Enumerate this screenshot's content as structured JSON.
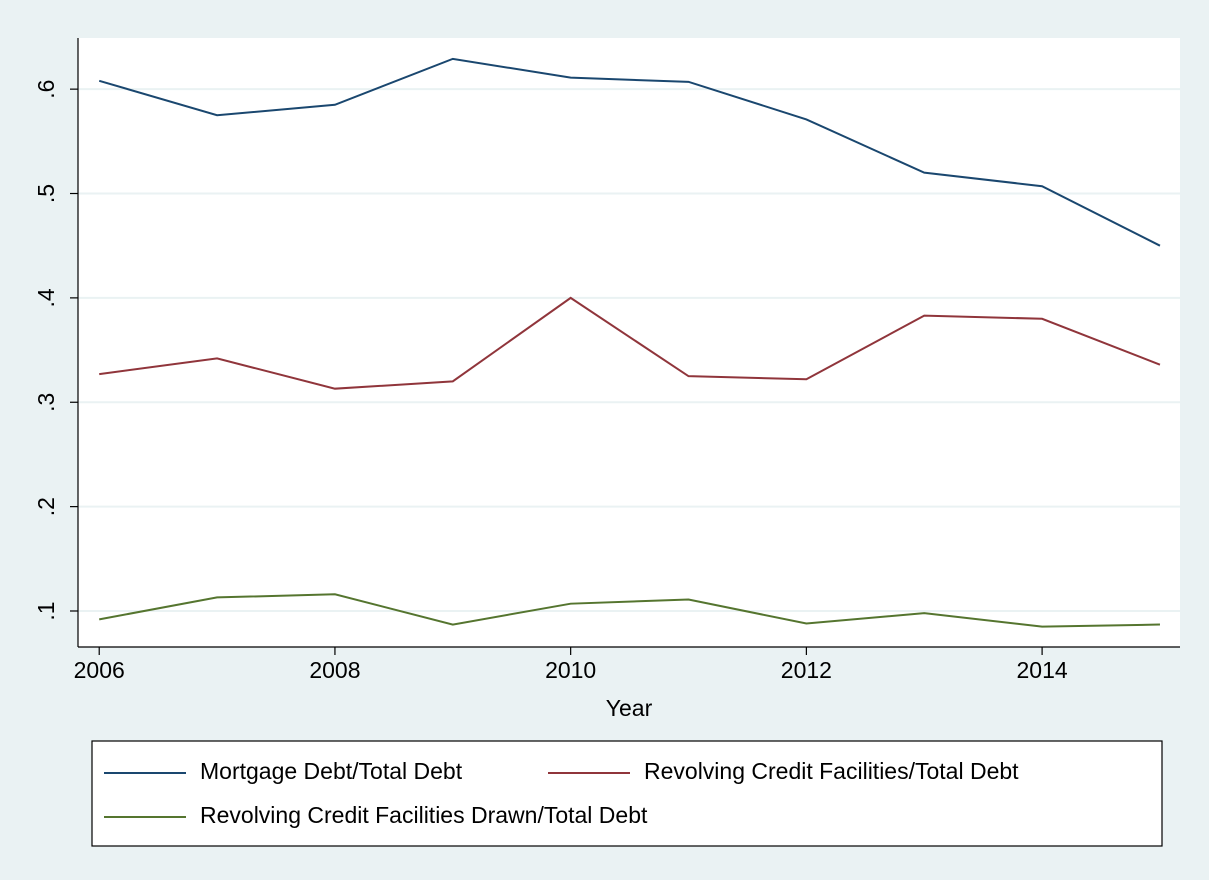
{
  "chart_data": {
    "type": "line",
    "x": [
      2006,
      2007,
      2008,
      2009,
      2010,
      2011,
      2012,
      2013,
      2014,
      2015
    ],
    "series": [
      {
        "name": "Mortgage Debt/Total Debt",
        "color": "#1a476f",
        "values": [
          0.608,
          0.575,
          0.585,
          0.629,
          0.611,
          0.607,
          0.571,
          0.52,
          0.507,
          0.45
        ]
      },
      {
        "name": "Revolving Credit Facilities/Total Debt",
        "color": "#90353b",
        "values": [
          0.327,
          0.342,
          0.313,
          0.32,
          0.4,
          0.325,
          0.322,
          0.383,
          0.38,
          0.336
        ]
      },
      {
        "name": "Revolving Credit Facilities Drawn/Total Debt",
        "color": "#55752f",
        "values": [
          0.092,
          0.113,
          0.116,
          0.087,
          0.107,
          0.111,
          0.088,
          0.098,
          0.085,
          0.087
        ]
      }
    ],
    "xlabel": "Year",
    "xlim": [
      2005.82,
      2015.17
    ],
    "xticks": [
      2006,
      2008,
      2010,
      2012,
      2014
    ],
    "ylim": [
      0.0655,
      0.649
    ],
    "yticks": [
      {
        "value": 0.1,
        "label": ".1"
      },
      {
        "value": 0.2,
        "label": ".2"
      },
      {
        "value": 0.3,
        "label": ".3"
      },
      {
        "value": 0.4,
        "label": ".4"
      },
      {
        "value": 0.5,
        "label": ".5"
      },
      {
        "value": 0.6,
        "label": ".6"
      }
    ],
    "grid": true,
    "legend": "bottom"
  }
}
